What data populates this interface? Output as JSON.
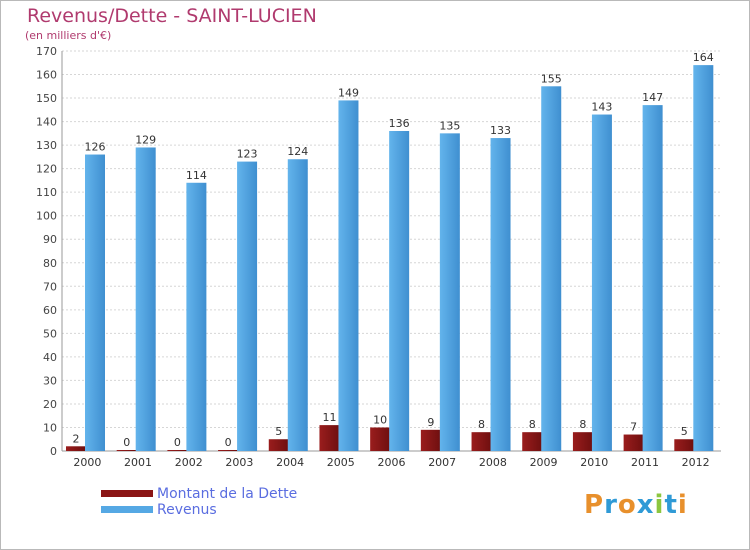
{
  "title": "Revenus/Dette - SAINT-LUCIEN",
  "subtitle": "(en milliers d'€)",
  "colors": {
    "dette": "#8b1515",
    "revenus": "#55a8e4",
    "title": "#b03a6e",
    "legend_text": "#5a6de0"
  },
  "logo": {
    "text": "Proxiti"
  },
  "chart_data": {
    "type": "bar",
    "title": "Revenus/Dette - SAINT-LUCIEN",
    "ylabel": "(en milliers d'€)",
    "xlabel": "",
    "ylim": [
      0,
      170
    ],
    "yticks": [
      0,
      10,
      20,
      30,
      40,
      50,
      60,
      70,
      80,
      90,
      100,
      110,
      120,
      130,
      140,
      150,
      160,
      170
    ],
    "grid": true,
    "legend_position": "bottom-left",
    "categories": [
      "2000",
      "2001",
      "2002",
      "2003",
      "2004",
      "2005",
      "2006",
      "2007",
      "2008",
      "2009",
      "2010",
      "2011",
      "2012"
    ],
    "series": [
      {
        "name": "Montant de la Dette",
        "values": [
          2,
          0,
          0,
          0,
          5,
          11,
          10,
          9,
          8,
          8,
          8,
          7,
          5
        ]
      },
      {
        "name": "Revenus",
        "values": [
          126,
          129,
          114,
          123,
          124,
          149,
          136,
          135,
          133,
          155,
          143,
          147,
          164
        ]
      }
    ]
  }
}
